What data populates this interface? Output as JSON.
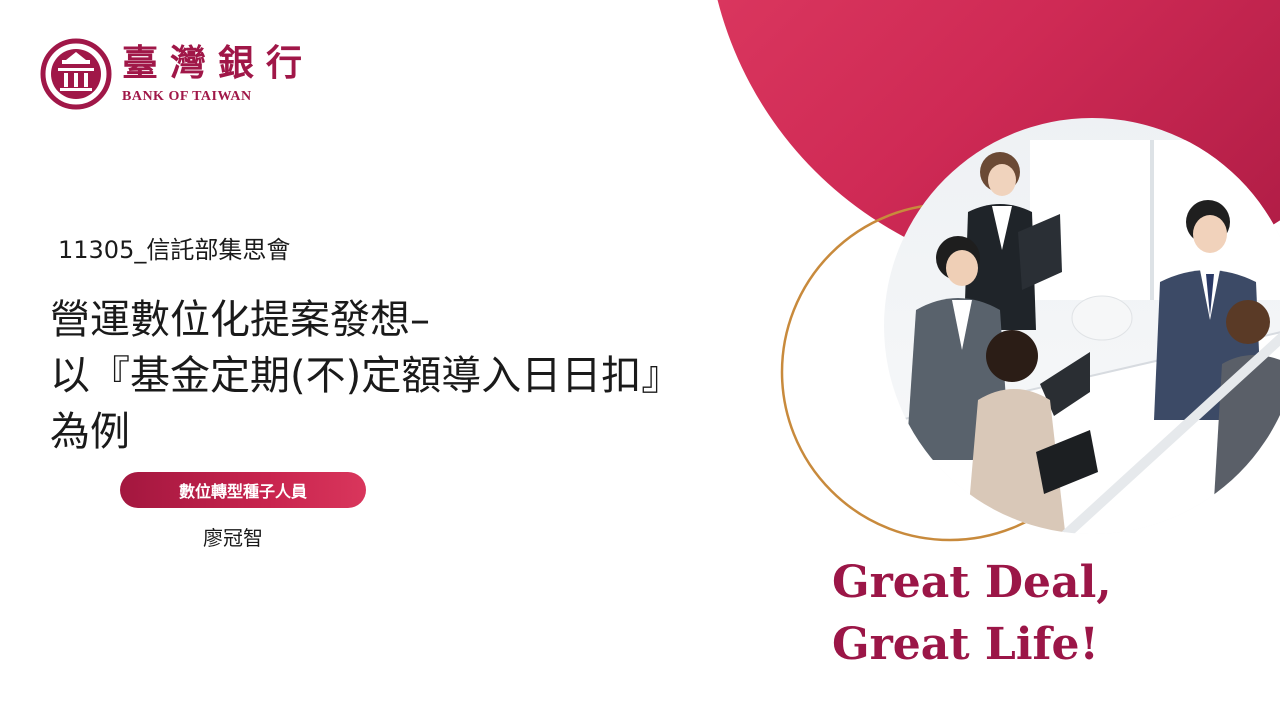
{
  "logo": {
    "name_cn": "臺灣銀行",
    "name_en": "BANK OF TAIWAN",
    "icon": "bank-of-taiwan-seal-icon"
  },
  "subtitle": "11305_信託部集思會",
  "title": {
    "line1": "營運數位化提案發想–",
    "line2": "以『基金定期(不)定額導入日日扣』",
    "line3": "為例"
  },
  "role": "數位轉型種子人員",
  "presenter": "廖冠智",
  "slogan": {
    "line1": "Great Deal,",
    "line2": "Great Life!"
  },
  "photo": {
    "icon": "business-meeting-photo"
  },
  "colors": {
    "brand": "#a01748",
    "accent_gradient_start": "#a3173f",
    "accent_gradient_end": "#e8466a",
    "ring": "#c88a3c",
    "slogan": "#9b1647"
  }
}
